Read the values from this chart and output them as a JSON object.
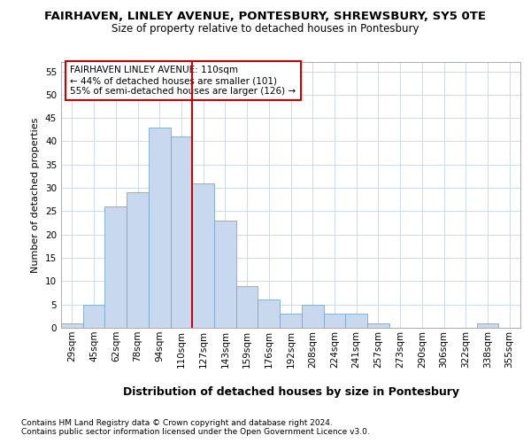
{
  "title": "FAIRHAVEN, LINLEY AVENUE, PONTESBURY, SHREWSBURY, SY5 0TE",
  "subtitle": "Size of property relative to detached houses in Pontesbury",
  "xlabel": "Distribution of detached houses by size in Pontesbury",
  "ylabel": "Number of detached properties",
  "categories": [
    "29sqm",
    "45sqm",
    "62sqm",
    "78sqm",
    "94sqm",
    "110sqm",
    "127sqm",
    "143sqm",
    "159sqm",
    "176sqm",
    "192sqm",
    "208sqm",
    "224sqm",
    "241sqm",
    "257sqm",
    "273sqm",
    "290sqm",
    "306sqm",
    "322sqm",
    "338sqm",
    "355sqm"
  ],
  "values": [
    1,
    5,
    26,
    29,
    43,
    41,
    31,
    23,
    9,
    6,
    3,
    5,
    3,
    3,
    1,
    0,
    0,
    0,
    0,
    1,
    0
  ],
  "bar_color": "#c8d8ee",
  "bar_edge_color": "#7ba7cc",
  "highlight_index": 5,
  "highlight_line_color": "#cc0000",
  "ylim": [
    0,
    57
  ],
  "yticks": [
    0,
    5,
    10,
    15,
    20,
    25,
    30,
    35,
    40,
    45,
    50,
    55
  ],
  "annotation_text": "FAIRHAVEN LINLEY AVENUE: 110sqm\n← 44% of detached houses are smaller (101)\n55% of semi-detached houses are larger (126) →",
  "annotation_box_color": "#ffffff",
  "annotation_box_edge": "#cc0000",
  "footer1": "Contains HM Land Registry data © Crown copyright and database right 2024.",
  "footer2": "Contains public sector information licensed under the Open Government Licence v3.0.",
  "bg_color": "#ffffff",
  "plot_bg_color": "#ffffff",
  "grid_color": "#d0dce8",
  "title_fontsize": 9.5,
  "subtitle_fontsize": 8.5,
  "xlabel_fontsize": 9,
  "ylabel_fontsize": 8,
  "tick_fontsize": 7.5,
  "annotation_fontsize": 7.5,
  "footer_fontsize": 6.5
}
